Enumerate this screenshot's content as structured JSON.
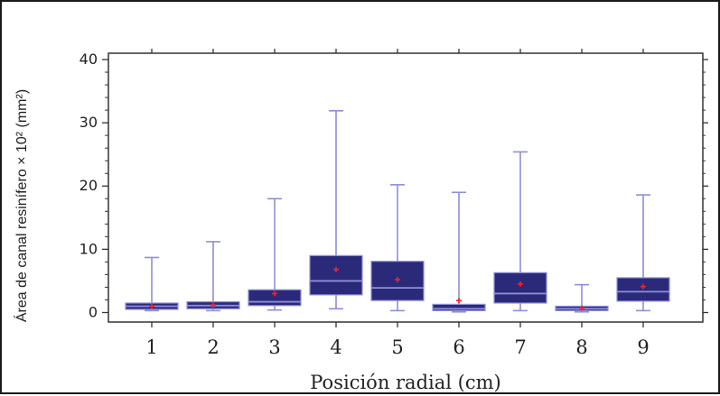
{
  "chart_data": {
    "type": "box",
    "xlabel": "Posición radial (cm)",
    "ylabel": "Área de canal resinífero × 10² (mm²)",
    "ylim": [
      -1.5,
      41
    ],
    "yticks": [
      0,
      10,
      20,
      30,
      40
    ],
    "categories": [
      "1",
      "2",
      "3",
      "4",
      "5",
      "6",
      "7",
      "8",
      "9"
    ],
    "boxes": [
      {
        "category": "1",
        "min": 0.3,
        "q1": 0.5,
        "median": 1.0,
        "q3": 1.5,
        "max": 8.7,
        "mean": 1.0
      },
      {
        "category": "2",
        "min": 0.3,
        "q1": 0.6,
        "median": 1.1,
        "q3": 1.7,
        "max": 11.2,
        "mean": 1.2
      },
      {
        "category": "3",
        "min": 0.4,
        "q1": 1.1,
        "median": 1.7,
        "q3": 3.6,
        "max": 18.0,
        "mean": 3.0
      },
      {
        "category": "4",
        "min": 0.6,
        "q1": 2.8,
        "median": 5.0,
        "q3": 9.0,
        "max": 31.9,
        "mean": 6.8
      },
      {
        "category": "5",
        "min": 0.3,
        "q1": 1.9,
        "median": 3.9,
        "q3": 8.1,
        "max": 20.2,
        "mean": 5.2
      },
      {
        "category": "6",
        "min": 0.1,
        "q1": 0.3,
        "median": 0.6,
        "q3": 1.3,
        "max": 19.0,
        "mean": 1.9
      },
      {
        "category": "7",
        "min": 0.3,
        "q1": 1.5,
        "median": 3.0,
        "q3": 6.3,
        "max": 25.4,
        "mean": 4.5
      },
      {
        "category": "8",
        "min": 0.1,
        "q1": 0.3,
        "median": 0.6,
        "q3": 1.0,
        "max": 4.4,
        "mean": 0.7
      },
      {
        "category": "9",
        "min": 0.3,
        "q1": 1.8,
        "median": 3.3,
        "q3": 5.5,
        "max": 18.6,
        "mean": 4.1
      }
    ],
    "colors": {
      "box_fill": "#2b2a7a",
      "whisker": "#8e8edb",
      "median_line": "#8e8edb",
      "mean_marker": "#ff2020",
      "axis": "#333333"
    },
    "grid": false,
    "legend": "none"
  }
}
